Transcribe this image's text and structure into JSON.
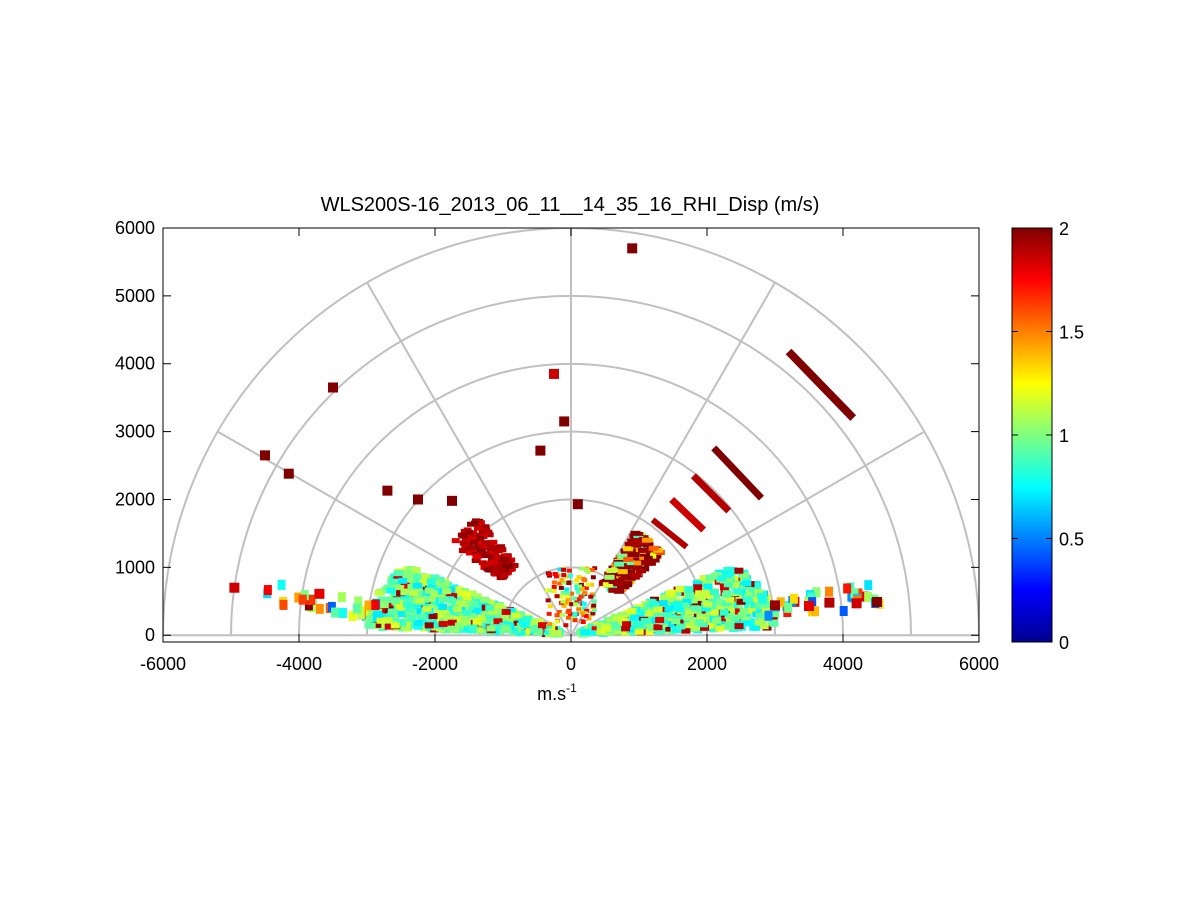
{
  "chart_data": {
    "type": "scatter",
    "title": "WLS200S-16_2013_06_11__14_35_16_RHI_Disp (m/s)",
    "xlabel": "m.s",
    "xlabel_superscript": "-1",
    "ylabel": "",
    "xlim": [
      -6000,
      6000
    ],
    "ylim": [
      -100,
      6000
    ],
    "x_ticks": [
      "-6000",
      "-4000",
      "-2000",
      "0",
      "2000",
      "4000",
      "6000"
    ],
    "y_ticks": [
      "0",
      "1000",
      "2000",
      "3000",
      "4000",
      "5000",
      "6000"
    ],
    "polar_grid": {
      "rings": [
        1000,
        2000,
        3000,
        4000,
        5000,
        6000
      ],
      "spokes_deg": [
        0,
        30,
        60,
        90,
        120,
        150,
        180
      ],
      "color": "#c0c0c0"
    },
    "colorbar": {
      "min": 0,
      "max": 2,
      "colormap": "jet",
      "ticks": [
        "0",
        "0.5",
        "1",
        "1.5",
        "2"
      ]
    },
    "lowlevel_fan": {
      "min_angle_deg": 4,
      "max_angle_deg": 176,
      "mean_value": 0.95
    },
    "features": [
      {
        "name": "right-side high-dispersion streaks",
        "x_range": [
          1000,
          4200
        ],
        "y_range": [
          800,
          4200
        ],
        "value": 2.0
      },
      {
        "name": "left-side scattered bins",
        "x_range": [
          -5000,
          -1000
        ],
        "y_range": [
          600,
          3700
        ],
        "value": 1.9
      },
      {
        "name": "vertical isolated bins",
        "x_range": [
          -500,
          100
        ],
        "y_range": [
          1000,
          3900
        ],
        "value": 1.9
      }
    ]
  }
}
